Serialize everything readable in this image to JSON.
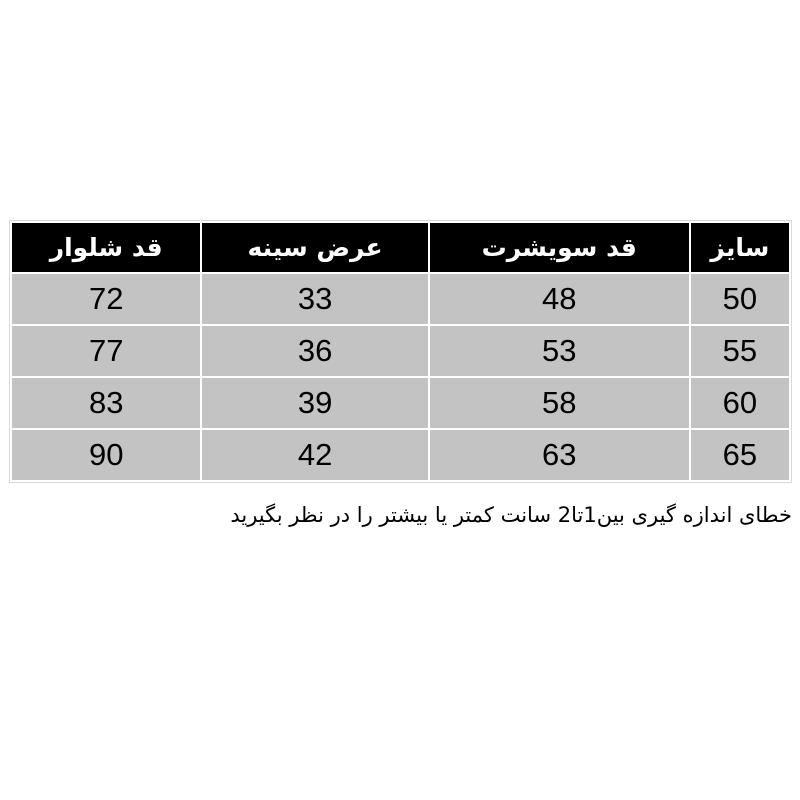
{
  "table": {
    "headers": [
      "سایز",
      "قد سویشرت",
      "عرض سینه",
      "قد شلوار"
    ],
    "rows": [
      [
        "50",
        "48",
        "33",
        "72"
      ],
      [
        "55",
        "53",
        "36",
        "77"
      ],
      [
        "60",
        "58",
        "39",
        "83"
      ],
      [
        "65",
        "63",
        "42",
        "90"
      ]
    ]
  },
  "note": "خطای اندازه گیری بین1تا2 سانت کمتر یا بیشتر را در نظر بگیرید",
  "colors": {
    "header_bg": "#000000",
    "row_bg": "#c3c3c3"
  }
}
